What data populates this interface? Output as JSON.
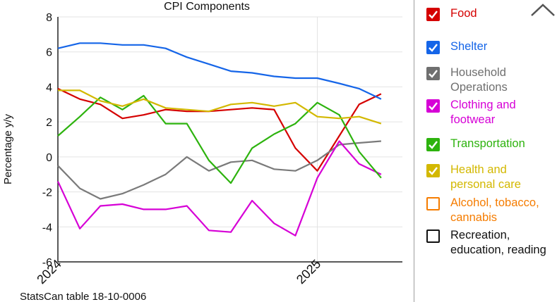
{
  "chart_data": {
    "type": "line",
    "title": "CPI Components",
    "ylabel": "Percentage y/y",
    "source": "StatsCan table 18-10-0006",
    "ylim": [
      -6,
      8
    ],
    "y_ticks": [
      "8",
      "6",
      "4",
      "2",
      "0",
      "-2",
      "-4",
      "-6"
    ],
    "x_ticks": [
      "2024",
      "2025"
    ],
    "x_months": [
      "2024-01",
      "2024-02",
      "2024-03",
      "2024-04",
      "2024-05",
      "2024-06",
      "2024-07",
      "2024-08",
      "2024-09",
      "2024-10",
      "2024-11",
      "2024-12",
      "2025-01",
      "2025-02",
      "2025-03",
      "2025-04"
    ],
    "grid": true,
    "legend_position": "right",
    "series": [
      {
        "name": "Food",
        "color": "#d50000",
        "checked": true,
        "values": [
          3.9,
          3.3,
          3.0,
          2.2,
          2.4,
          2.7,
          2.6,
          2.6,
          2.7,
          2.8,
          2.7,
          0.5,
          -0.8,
          1.2,
          3.0,
          3.6
        ]
      },
      {
        "name": "Shelter",
        "color": "#1565e8",
        "checked": true,
        "values": [
          6.2,
          6.5,
          6.5,
          6.4,
          6.4,
          6.2,
          5.7,
          5.3,
          4.9,
          4.8,
          4.6,
          4.5,
          4.5,
          4.2,
          3.9,
          3.3
        ]
      },
      {
        "name": "Household Operations",
        "color": "#7a7a7a",
        "checked": true,
        "values": [
          -0.5,
          -1.8,
          -2.4,
          -2.1,
          -1.6,
          -1.0,
          0.0,
          -0.8,
          -0.3,
          -0.2,
          -0.7,
          -0.8,
          -0.2,
          0.7,
          0.8,
          0.9
        ]
      },
      {
        "name": "Clothing and footwear",
        "color": "#d600d6",
        "checked": true,
        "values": [
          -1.4,
          -4.1,
          -2.8,
          -2.7,
          -3.0,
          -3.0,
          -2.8,
          -4.2,
          -4.3,
          -2.5,
          -3.8,
          -4.5,
          -1.2,
          0.9,
          -0.4,
          -1.0
        ]
      },
      {
        "name": "Transportation",
        "color": "#2db30e",
        "checked": true,
        "values": [
          1.2,
          2.3,
          3.4,
          2.7,
          3.5,
          1.9,
          1.9,
          -0.2,
          -1.5,
          0.5,
          1.3,
          1.9,
          3.1,
          2.4,
          0.3,
          -1.2
        ]
      },
      {
        "name": "Health and personal care",
        "color": "#d3b800",
        "checked": true,
        "values": [
          3.8,
          3.8,
          3.2,
          2.9,
          3.3,
          2.8,
          2.7,
          2.6,
          3.0,
          3.1,
          2.9,
          3.1,
          2.3,
          2.2,
          2.3,
          1.9
        ]
      },
      {
        "name": "Alcohol, tobacco, cannabis",
        "color": "#f57c00",
        "checked": false,
        "values": []
      },
      {
        "name": "Recreation, education, reading",
        "color": "#111111",
        "checked": false,
        "values": []
      }
    ]
  },
  "legend": {
    "items": [
      {
        "label": "Food",
        "color": "#d50000",
        "checked": true
      },
      {
        "label": "Shelter",
        "color": "#1565e8",
        "checked": true
      },
      {
        "label": "Household\nOperations",
        "color": "#6f6f6f",
        "checked": true
      },
      {
        "label": "Clothing and\nfootwear",
        "color": "#d600d6",
        "checked": true
      },
      {
        "label": "Transportation",
        "color": "#2db30e",
        "checked": true
      },
      {
        "label": "Health and\npersonal care",
        "color": "#d3b800",
        "checked": true
      },
      {
        "label": "Alcohol, tobacco,\ncannabis",
        "color": "#f57c00",
        "checked": false
      },
      {
        "label": "Recreation,\neducation, reading",
        "color": "#111111",
        "checked": false
      }
    ],
    "collapse_icon": "chevron-up-icon"
  }
}
